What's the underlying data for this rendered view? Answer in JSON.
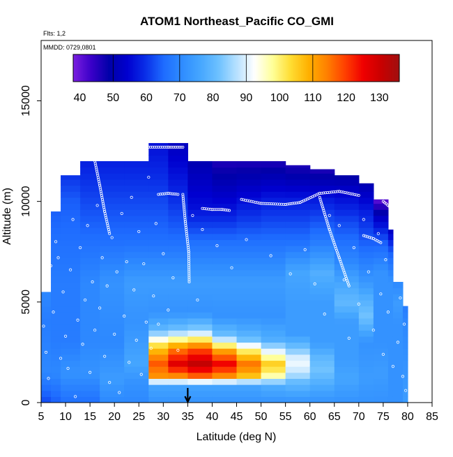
{
  "chart_data": {
    "type": "heatmap",
    "title": "ATOM1 Northeast_Pacific CO_GMI",
    "subtitle_lines": [
      "Flts: 1,2",
      "MMDD: 0729,0801"
    ],
    "xlabel": "Latitude (deg N)",
    "ylabel": "Altitude (m)",
    "xlim": [
      5,
      85
    ],
    "ylim": [
      0,
      18000
    ],
    "x_ticks": [
      "5",
      "10",
      "15",
      "20",
      "25",
      "30",
      "35",
      "40",
      "45",
      "50",
      "55",
      "60",
      "65",
      "70",
      "75",
      "80",
      "85"
    ],
    "y_ticks": [
      "0",
      "5000",
      "10000",
      "15000"
    ],
    "grid": false,
    "colorbar": {
      "placement": "top",
      "min": 38,
      "max": 136,
      "ticks": [
        "40",
        "50",
        "60",
        "70",
        "80",
        "90",
        "100",
        "110",
        "120",
        "130"
      ],
      "colors": [
        "#7b1fe0",
        "#3a00c8",
        "#0000a8",
        "#0000d0",
        "#0a2fe8",
        "#1e6cff",
        "#2f8cff",
        "#45a6ff",
        "#6cc0ff",
        "#b5e0ff",
        "#ffffff",
        "#ffff99",
        "#ffdd33",
        "#ffb000",
        "#ff8000",
        "#ff4000",
        "#f00000",
        "#c80000",
        "#a01010"
      ]
    },
    "marker_latitude": 35,
    "columns": [
      {
        "x0": 5,
        "x1": 7,
        "ytop": 5500,
        "profile": [
          [
            0,
            62
          ],
          [
            1500,
            70
          ],
          [
            4000,
            68
          ],
          [
            5500,
            70
          ]
        ]
      },
      {
        "x0": 7,
        "x1": 9,
        "ytop": 9500,
        "profile": [
          [
            0,
            64
          ],
          [
            1500,
            70
          ],
          [
            3000,
            68
          ],
          [
            6000,
            68
          ],
          [
            8000,
            66
          ],
          [
            9500,
            64
          ]
        ]
      },
      {
        "x0": 9,
        "x1": 13,
        "ytop": 11300,
        "profile": [
          [
            0,
            66
          ],
          [
            1500,
            72
          ],
          [
            3000,
            68
          ],
          [
            6000,
            68
          ],
          [
            8000,
            66
          ],
          [
            10000,
            64
          ],
          [
            11300,
            60
          ]
        ]
      },
      {
        "x0": 13,
        "x1": 17,
        "ytop": 12000,
        "profile": [
          [
            0,
            66
          ],
          [
            1500,
            72
          ],
          [
            3000,
            70
          ],
          [
            6000,
            70
          ],
          [
            8000,
            66
          ],
          [
            10000,
            62
          ],
          [
            12000,
            58
          ]
        ]
      },
      {
        "x0": 17,
        "x1": 22,
        "ytop": 12000,
        "profile": [
          [
            0,
            70
          ],
          [
            1200,
            74
          ],
          [
            3000,
            70
          ],
          [
            6000,
            72
          ],
          [
            8000,
            66
          ],
          [
            10000,
            62
          ],
          [
            12000,
            58
          ]
        ]
      },
      {
        "x0": 22,
        "x1": 27,
        "ytop": 12000,
        "profile": [
          [
            0,
            70
          ],
          [
            1000,
            72
          ],
          [
            2000,
            76
          ],
          [
            3000,
            74
          ],
          [
            4000,
            72
          ],
          [
            6000,
            74
          ],
          [
            8000,
            66
          ],
          [
            10000,
            62
          ],
          [
            12000,
            58
          ]
        ]
      },
      {
        "x0": 27,
        "x1": 31,
        "ytop": 12900,
        "profile": [
          [
            0,
            72
          ],
          [
            900,
            76
          ],
          [
            1300,
            112
          ],
          [
            2000,
            118
          ],
          [
            2800,
            104
          ],
          [
            3600,
            80
          ],
          [
            4500,
            72
          ],
          [
            6000,
            74
          ],
          [
            8000,
            66
          ],
          [
            10000,
            62
          ],
          [
            12900,
            56
          ]
        ]
      },
      {
        "x0": 31,
        "x1": 35,
        "ytop": 12900,
        "profile": [
          [
            0,
            72
          ],
          [
            900,
            76
          ],
          [
            1300,
            112
          ],
          [
            1900,
            128
          ],
          [
            2700,
            114
          ],
          [
            3600,
            82
          ],
          [
            4500,
            72
          ],
          [
            6000,
            74
          ],
          [
            8000,
            66
          ],
          [
            10000,
            60
          ],
          [
            12900,
            52
          ]
        ]
      },
      {
        "x0": 35,
        "x1": 40,
        "ytop": 12000,
        "profile": [
          [
            0,
            72
          ],
          [
            900,
            76
          ],
          [
            1300,
            116
          ],
          [
            1900,
            132
          ],
          [
            2700,
            118
          ],
          [
            3600,
            84
          ],
          [
            4500,
            72
          ],
          [
            6000,
            74
          ],
          [
            8000,
            66
          ],
          [
            9700,
            56
          ],
          [
            12000,
            50
          ]
        ]
      },
      {
        "x0": 40,
        "x1": 45,
        "ytop": 12000,
        "profile": [
          [
            0,
            72
          ],
          [
            900,
            76
          ],
          [
            1300,
            112
          ],
          [
            1900,
            126
          ],
          [
            2600,
            110
          ],
          [
            3300,
            82
          ],
          [
            4300,
            72
          ],
          [
            6000,
            74
          ],
          [
            8000,
            66
          ],
          [
            9700,
            56
          ],
          [
            12000,
            46
          ]
        ]
      },
      {
        "x0": 45,
        "x1": 50,
        "ytop": 12000,
        "profile": [
          [
            0,
            72
          ],
          [
            900,
            76
          ],
          [
            1300,
            106
          ],
          [
            1900,
            116
          ],
          [
            2600,
            100
          ],
          [
            3200,
            80
          ],
          [
            4300,
            72
          ],
          [
            6000,
            74
          ],
          [
            8000,
            66
          ],
          [
            9700,
            58
          ],
          [
            12000,
            46
          ]
        ]
      },
      {
        "x0": 50,
        "x1": 55,
        "ytop": 12000,
        "profile": [
          [
            0,
            72
          ],
          [
            900,
            78
          ],
          [
            1300,
            96
          ],
          [
            1900,
            106
          ],
          [
            2500,
            92
          ],
          [
            3100,
            78
          ],
          [
            4300,
            72
          ],
          [
            6000,
            74
          ],
          [
            8000,
            66
          ],
          [
            10000,
            58
          ],
          [
            12000,
            46
          ]
        ]
      },
      {
        "x0": 55,
        "x1": 60,
        "ytop": 11800,
        "profile": [
          [
            0,
            72
          ],
          [
            1000,
            80
          ],
          [
            1500,
            88
          ],
          [
            2100,
            92
          ],
          [
            2700,
            82
          ],
          [
            3400,
            74
          ],
          [
            5000,
            74
          ],
          [
            6500,
            76
          ],
          [
            8000,
            66
          ],
          [
            10000,
            58
          ],
          [
            11800,
            46
          ]
        ]
      },
      {
        "x0": 60,
        "x1": 65,
        "ytop": 11600,
        "profile": [
          [
            0,
            72
          ],
          [
            1000,
            78
          ],
          [
            1600,
            82
          ],
          [
            2200,
            80
          ],
          [
            3000,
            74
          ],
          [
            5000,
            74
          ],
          [
            6500,
            78
          ],
          [
            8000,
            68
          ],
          [
            10000,
            58
          ],
          [
            11600,
            46
          ]
        ]
      },
      {
        "x0": 65,
        "x1": 70,
        "ytop": 11300,
        "profile": [
          [
            0,
            72
          ],
          [
            1200,
            76
          ],
          [
            2200,
            74
          ],
          [
            4000,
            74
          ],
          [
            5000,
            80
          ],
          [
            6000,
            76
          ],
          [
            7000,
            70
          ],
          [
            9000,
            62
          ],
          [
            10500,
            54
          ],
          [
            11300,
            48
          ]
        ]
      },
      {
        "x0": 70,
        "x1": 73,
        "ytop": 10900,
        "profile": [
          [
            0,
            72
          ],
          [
            1200,
            74
          ],
          [
            3000,
            72
          ],
          [
            4300,
            82
          ],
          [
            5200,
            78
          ],
          [
            6200,
            72
          ],
          [
            8000,
            64
          ],
          [
            9500,
            58
          ],
          [
            10900,
            50
          ]
        ]
      },
      {
        "x0": 73,
        "x1": 76,
        "ytop": 10100,
        "profile": [
          [
            0,
            72
          ],
          [
            1500,
            74
          ],
          [
            3000,
            72
          ],
          [
            5000,
            72
          ],
          [
            6500,
            72
          ],
          [
            8000,
            64
          ],
          [
            9300,
            52
          ],
          [
            10100,
            40
          ]
        ]
      },
      {
        "x0": 76,
        "x1": 77,
        "ytop": 8600,
        "profile": [
          [
            0,
            72
          ],
          [
            2000,
            72
          ],
          [
            4000,
            72
          ],
          [
            6000,
            72
          ],
          [
            7500,
            64
          ],
          [
            8600,
            52
          ]
        ]
      },
      {
        "x0": 77,
        "x1": 79,
        "ytop": 6000,
        "profile": [
          [
            0,
            72
          ],
          [
            2000,
            72
          ],
          [
            4000,
            72
          ],
          [
            5000,
            74
          ],
          [
            6000,
            70
          ]
        ]
      },
      {
        "x0": 79,
        "x1": 80,
        "ytop": 4800,
        "profile": [
          [
            300,
            74
          ],
          [
            2000,
            72
          ],
          [
            4000,
            70
          ],
          [
            4800,
            68
          ]
        ]
      }
    ],
    "flight_tracks": [
      {
        "name": "track-a",
        "points": [
          [
            27,
            12700
          ],
          [
            31,
            12700
          ],
          [
            34,
            12700
          ]
        ]
      },
      {
        "name": "track-b",
        "points": [
          [
            29,
            10350
          ],
          [
            31,
            10400
          ],
          [
            33,
            10350
          ]
        ]
      },
      {
        "name": "track-c",
        "points": [
          [
            38,
            9650
          ],
          [
            40,
            9600
          ],
          [
            42,
            9600
          ],
          [
            43.5,
            9550
          ]
        ]
      },
      {
        "name": "track-d",
        "points": [
          [
            46,
            10100
          ],
          [
            50,
            9900
          ],
          [
            55,
            9850
          ],
          [
            58,
            9950
          ],
          [
            62,
            10400
          ],
          [
            66,
            10500
          ],
          [
            70,
            10300
          ]
        ]
      },
      {
        "name": "track-e",
        "points": [
          [
            71,
            8300
          ],
          [
            73,
            8150
          ],
          [
            74.5,
            7950
          ]
        ]
      },
      {
        "name": "track-f",
        "points": [
          [
            75,
            10000
          ],
          [
            76.5,
            9700
          ],
          [
            77,
            9300
          ]
        ]
      },
      {
        "name": "track-g",
        "points": [
          [
            34,
            10350
          ],
          [
            34.5,
            9000
          ],
          [
            35.2,
            7500
          ],
          [
            35.3,
            6000
          ]
        ]
      },
      {
        "name": "track-h",
        "points": [
          [
            16,
            12000
          ],
          [
            17,
            10800
          ],
          [
            18,
            9500
          ],
          [
            19,
            8400
          ]
        ]
      },
      {
        "name": "track-i",
        "points": [
          [
            62,
            10200
          ],
          [
            64,
            8600
          ],
          [
            66,
            7200
          ],
          [
            68,
            5800
          ]
        ]
      }
    ],
    "sample_points": [
      [
        5.5,
        3800
      ],
      [
        6,
        2500
      ],
      [
        6.5,
        1200
      ],
      [
        7,
        6800
      ],
      [
        7.5,
        4500
      ],
      [
        8,
        8000
      ],
      [
        8.5,
        7200
      ],
      [
        9,
        2200
      ],
      [
        9.5,
        5500
      ],
      [
        10,
        3300
      ],
      [
        10.5,
        1700
      ],
      [
        11,
        6600
      ],
      [
        11.5,
        9100
      ],
      [
        12,
        300
      ],
      [
        12.5,
        4100
      ],
      [
        13,
        7700
      ],
      [
        13.5,
        2900
      ],
      [
        14,
        5100
      ],
      [
        14.5,
        8800
      ],
      [
        15,
        1500
      ],
      [
        15.5,
        6000
      ],
      [
        16,
        3600
      ],
      [
        16.5,
        9800
      ],
      [
        17,
        4700
      ],
      [
        17.5,
        7200
      ],
      [
        18,
        2300
      ],
      [
        18.5,
        5800
      ],
      [
        19,
        1000
      ],
      [
        19.5,
        8200
      ],
      [
        20,
        3400
      ],
      [
        20.5,
        6500
      ],
      [
        21,
        500
      ],
      [
        21.5,
        9400
      ],
      [
        22,
        4300
      ],
      [
        22.5,
        7000
      ],
      [
        23,
        2000
      ],
      [
        23.5,
        10200
      ],
      [
        24,
        5600
      ],
      [
        24.5,
        3100
      ],
      [
        25,
        8500
      ],
      [
        25.5,
        1400
      ],
      [
        26,
        6900
      ],
      [
        26.5,
        4000
      ],
      [
        27,
        11200
      ],
      [
        27.5,
        2700
      ],
      [
        28,
        5300
      ],
      [
        28.5,
        8900
      ],
      [
        29,
        3900
      ],
      [
        30,
        7400
      ],
      [
        31,
        4600
      ],
      [
        32,
        6200
      ],
      [
        33,
        2600
      ],
      [
        36,
        9300
      ],
      [
        37,
        5100
      ],
      [
        38,
        8600
      ],
      [
        41,
        7800
      ],
      [
        44,
        6700
      ],
      [
        47,
        8100
      ],
      [
        52,
        7300
      ],
      [
        56,
        6400
      ],
      [
        59,
        7600
      ],
      [
        61,
        5900
      ],
      [
        63,
        4400
      ],
      [
        64,
        9300
      ],
      [
        66,
        8800
      ],
      [
        67,
        6100
      ],
      [
        68,
        3200
      ],
      [
        69,
        7700
      ],
      [
        70,
        4900
      ],
      [
        71,
        9100
      ],
      [
        72,
        6500
      ],
      [
        73,
        3600
      ],
      [
        74,
        8400
      ],
      [
        74.5,
        5400
      ],
      [
        75,
        2400
      ],
      [
        75.5,
        7100
      ],
      [
        76,
        4500
      ],
      [
        76.5,
        9000
      ],
      [
        77,
        1800
      ],
      [
        77.5,
        6300
      ],
      [
        78,
        3000
      ],
      [
        78.5,
        5200
      ],
      [
        79,
        1300
      ],
      [
        79.3,
        3900
      ],
      [
        79.6,
        600
      ]
    ]
  }
}
